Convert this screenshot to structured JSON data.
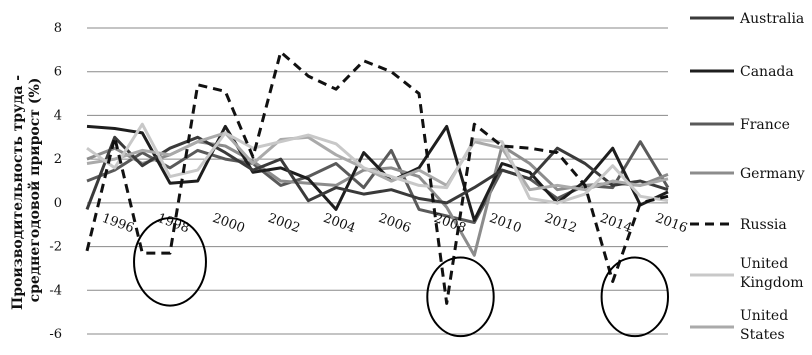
{
  "chart_data": {
    "type": "line",
    "ylabel": "Производительность труда - среднегодовой прирост  (%)",
    "ylim": [
      -6,
      8
    ],
    "yticks": [
      -6,
      -4,
      -2,
      0,
      2,
      4,
      6,
      8
    ],
    "x": [
      1995,
      1996,
      1997,
      1998,
      1999,
      2000,
      2001,
      2002,
      2003,
      2004,
      2005,
      2006,
      2007,
      2008,
      2009,
      2010,
      2011,
      2012,
      2013,
      2014,
      2015,
      2016
    ],
    "xticks": [
      "1996",
      "1998",
      "2000",
      "2002",
      "2004",
      "2006",
      "2008",
      "2010",
      "2012",
      "2014",
      "2016"
    ],
    "grid": "horizontal",
    "legend": "right",
    "series": [
      {
        "name": "Australia",
        "color": "#3a3a3a",
        "dash": false,
        "values": [
          -0.3,
          3.0,
          1.7,
          2.5,
          3.0,
          2.3,
          1.5,
          2.0,
          0.1,
          0.7,
          0.4,
          0.6,
          0.2,
          0.0,
          0.7,
          1.5,
          1.1,
          2.5,
          1.8,
          0.8,
          1.0,
          0.6
        ]
      },
      {
        "name": "Canada",
        "color": "#1e1e1e",
        "dash": false,
        "values": [
          3.5,
          3.4,
          3.2,
          0.9,
          1.0,
          3.5,
          1.4,
          1.6,
          1.1,
          -0.3,
          2.3,
          1.0,
          1.6,
          3.5,
          -0.8,
          1.8,
          1.4,
          0.0,
          1.0,
          2.5,
          -0.1,
          0.5
        ]
      },
      {
        "name": "France",
        "color": "#5a5a5a",
        "dash": false,
        "values": [
          1.0,
          1.5,
          2.3,
          1.6,
          2.4,
          2.0,
          1.8,
          0.8,
          1.2,
          1.8,
          0.7,
          2.4,
          -0.3,
          -0.6,
          -0.9,
          1.5,
          1.1,
          0.2,
          0.8,
          0.7,
          2.8,
          0.7
        ]
      },
      {
        "name": "Germany",
        "color": "#8c8c8c",
        "dash": false,
        "values": [
          2.0,
          2.5,
          1.8,
          2.2,
          2.8,
          2.6,
          1.9,
          1.0,
          0.9,
          0.8,
          1.5,
          1.6,
          1.2,
          -0.2,
          -2.4,
          2.6,
          1.8,
          0.6,
          0.8,
          0.9,
          0.8,
          1.3
        ]
      },
      {
        "name": "Russia",
        "color": "#111111",
        "dash": true,
        "values": [
          -2.2,
          3.0,
          -2.3,
          -2.3,
          5.4,
          5.1,
          2.1,
          6.9,
          5.8,
          5.2,
          6.5,
          6.0,
          5.0,
          -4.6,
          3.6,
          2.6,
          2.5,
          2.3,
          0.8,
          -3.6,
          0.0,
          0.3
        ]
      },
      {
        "name": "United Kingdom",
        "color": "#c8c8c8",
        "dash": false,
        "values": [
          2.5,
          1.6,
          3.6,
          1.2,
          1.5,
          3.2,
          2.5,
          2.8,
          3.1,
          2.7,
          1.6,
          1.2,
          0.8,
          0.7,
          2.9,
          2.8,
          0.2,
          0.0,
          0.4,
          1.7,
          0.3,
          0.1
        ]
      },
      {
        "name": "United States",
        "color": "#aaaaaa",
        "dash": false,
        "values": [
          1.8,
          2.0,
          2.4,
          2.2,
          2.8,
          3.2,
          1.8,
          2.9,
          3.0,
          2.2,
          1.6,
          1.0,
          1.5,
          0.8,
          2.8,
          2.5,
          0.6,
          0.8,
          0.6,
          1.0,
          0.8,
          1.1
        ]
      }
    ],
    "annotations": [
      {
        "type": "ellipse",
        "x": 1998,
        "y": -2.7,
        "rx_years": 1.3,
        "ry": 2.0
      },
      {
        "type": "ellipse",
        "x": 2008.5,
        "y": -4.3,
        "rx_years": 1.2,
        "ry": 1.8
      },
      {
        "type": "ellipse",
        "x": 2014.8,
        "y": -4.3,
        "rx_years": 1.2,
        "ry": 1.8
      }
    ]
  }
}
